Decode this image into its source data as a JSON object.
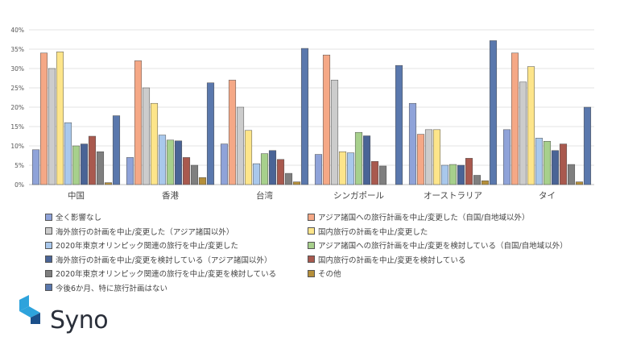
{
  "chart_data": {
    "type": "bar",
    "ylim": [
      0,
      40
    ],
    "yticks": [
      "0%",
      "5%",
      "10%",
      "15%",
      "20%",
      "25%",
      "30%",
      "35%",
      "40%"
    ],
    "grid": true,
    "legend_position": "bottom",
    "categories": [
      "中国",
      "香港",
      "台湾",
      "シンガポール",
      "オーストラリア",
      "タイ"
    ],
    "series": [
      {
        "name": "全く影響なし",
        "color": "#8fa3d9",
        "values": [
          9,
          7,
          10.5,
          7.8,
          21,
          14.2
        ]
      },
      {
        "name": "アジア諸国への旅行計画を中止/変更した（自国/自地域以外）",
        "color": "#f5a886",
        "values": [
          34,
          32,
          27,
          33.5,
          13,
          34
        ]
      },
      {
        "name": "海外旅行の計画を中止/変更した（アジア諸国以外）",
        "color": "#cccccc",
        "values": [
          30,
          25,
          20,
          27,
          14.2,
          26.5
        ]
      },
      {
        "name": "国内旅行の計画を中止/変更した",
        "color": "#fde58a",
        "values": [
          34.3,
          21,
          14,
          8.5,
          14.2,
          30.5
        ]
      },
      {
        "name": "2020年東京オリンピック関連の旅行を中止/変更した",
        "color": "#a9c8ec",
        "values": [
          16,
          12.8,
          5.4,
          8.2,
          5,
          12
        ]
      },
      {
        "name": "アジア諸国への旅行計画を中止/変更を検討している（自国/自地域以外）",
        "color": "#a7d08c",
        "values": [
          10,
          11.5,
          8,
          13.5,
          5.2,
          11.2
        ]
      },
      {
        "name": "海外旅行の計画を中止/変更を検討している（アジア諸国以外）",
        "color": "#4a6496",
        "values": [
          10.5,
          11.3,
          8.8,
          12.6,
          5,
          8.8
        ]
      },
      {
        "name": "国内旅行の計画を中止/変更を検討している",
        "color": "#a9594e",
        "values": [
          12.5,
          7,
          6.5,
          6,
          6.8,
          10.5
        ]
      },
      {
        "name": "2020年東京オリンピック関連の旅行を中止/変更を検討している",
        "color": "#7f7f7f",
        "values": [
          8.5,
          5,
          2.9,
          4.8,
          2.4,
          5.2
        ]
      },
      {
        "name": "その他",
        "color": "#b58f3a",
        "values": [
          0.5,
          1.8,
          0.7,
          0,
          1,
          0.7
        ]
      },
      {
        "name": "今後6か月、特に旅行計画はない",
        "color": "#5a78ad",
        "values": [
          17.8,
          26.3,
          35.2,
          30.8,
          37.2,
          20
        ]
      }
    ]
  },
  "brand": {
    "name": "Syno",
    "mark_color_light": "#2ea3dc",
    "mark_color_dark": "#1b4f8a"
  }
}
